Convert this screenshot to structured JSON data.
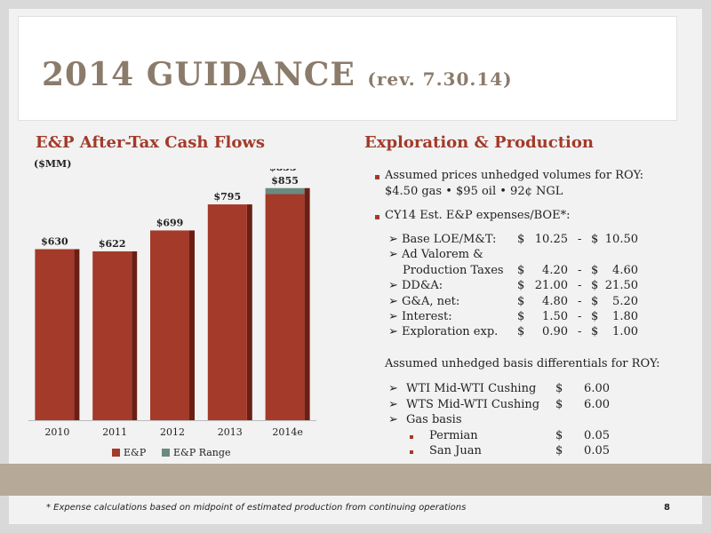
{
  "slide": {
    "title_main": "2014 GUIDANCE",
    "title_rev": "(rev. 7.30.14)",
    "left_heading": "E&P After-Tax Cash Flows",
    "units": "($MM)",
    "right_heading": "Exploration & Production",
    "bullet1_line1": "Assumed prices unhedged volumes for ROY:",
    "bullet1_line2": "$4.50 gas • $95 oil • 92¢ NGL",
    "bullet2": "CY14 Est. E&P expenses/BOE*:",
    "expenses": [
      {
        "label": "Base LOE/M&T:",
        "low": "10.25",
        "high": "10.50"
      },
      {
        "label": "Ad Valorem &",
        "low": "",
        "high": ""
      },
      {
        "label": "Production Taxes",
        "low": "4.20",
        "high": "4.60"
      },
      {
        "label": "DD&A:",
        "low": "21.00",
        "high": "21.50"
      },
      {
        "label": "G&A, net:",
        "low": "4.80",
        "high": "5.20"
      },
      {
        "label": "Interest:",
        "low": "1.50",
        "high": "1.80"
      },
      {
        "label": "Exploration exp.",
        "low": "0.90",
        "high": "1.00"
      }
    ],
    "basis_intro": "Assumed unhedged basis differentials for ROY:",
    "basis": [
      {
        "label": "WTI Mid-WTI Cushing",
        "value": "6.00"
      },
      {
        "label": "WTS Mid-WTI Cushing",
        "value": "6.00"
      },
      {
        "label": "Gas basis",
        "value": ""
      },
      {
        "label": "Permian",
        "value": "0.05"
      },
      {
        "label": "San Juan",
        "value": "0.05"
      }
    ],
    "currency": "$",
    "dash": "-",
    "footnote": "* Expense calculations based on midpoint of estimated production from continuing operations",
    "page_number": "8"
  },
  "chart_data": {
    "type": "bar",
    "categories": [
      "2010",
      "2011",
      "2012",
      "2013",
      "2014e"
    ],
    "series": [
      {
        "name": "E&P",
        "values": [
          630,
          622,
          699,
          795,
          833
        ]
      },
      {
        "name": "E&P Range",
        "values": [
          0,
          0,
          0,
          0,
          22
        ]
      }
    ],
    "data_labels": [
      "$630",
      "$622",
      "$699",
      "$795",
      "$833-\n$855"
    ],
    "ylim": [
      0,
      900
    ],
    "legend": "bottom",
    "colors": {
      "E&P": "#a33a2a",
      "E&P Range": "#6b8a80",
      "shadow": "#6b1f14"
    }
  },
  "colors": {
    "accent": "#a33a2a",
    "title": "#8b7b6b",
    "band": "#b6a998"
  }
}
